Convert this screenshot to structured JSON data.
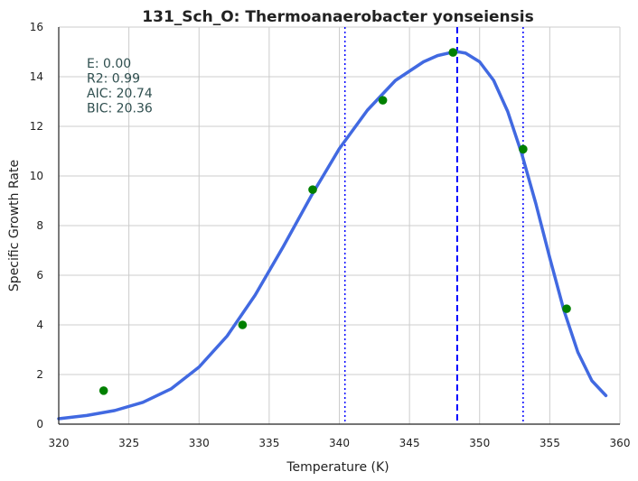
{
  "chart_data": {
    "type": "line",
    "title": "131_Sch_O: Thermoanaerobacter yonseiensis",
    "xlabel": "Temperature (K)",
    "ylabel": "Specific Growth Rate",
    "xlim": [
      320,
      360
    ],
    "ylim": [
      0,
      16
    ],
    "x_ticks": [
      320,
      325,
      330,
      335,
      340,
      345,
      350,
      355,
      360
    ],
    "y_ticks": [
      0,
      2,
      4,
      6,
      8,
      10,
      12,
      14,
      16
    ],
    "grid": true,
    "stats": [
      "E:  0.00",
      "R2:  0.99",
      "AIC: 20.74",
      "BIC: 20.36"
    ],
    "points": {
      "color": "#008000",
      "x": [
        323.2,
        333.1,
        338.1,
        343.1,
        348.1,
        353.1,
        356.2
      ],
      "y": [
        1.35,
        4.0,
        9.45,
        13.05,
        14.98,
        11.08,
        4.65
      ]
    },
    "fit_curve": {
      "color": "#4169e1",
      "x": [
        320,
        322,
        324,
        326,
        328,
        330,
        332,
        334,
        336,
        338,
        340,
        342,
        344,
        346,
        347,
        348,
        348.5,
        349,
        350,
        351,
        352,
        353,
        354,
        355,
        356,
        357,
        358,
        359
      ],
      "y": [
        0.22,
        0.35,
        0.55,
        0.88,
        1.42,
        2.3,
        3.55,
        5.2,
        7.15,
        9.2,
        11.1,
        12.65,
        13.85,
        14.6,
        14.85,
        14.98,
        15.0,
        14.95,
        14.6,
        13.85,
        12.6,
        10.9,
        8.9,
        6.7,
        4.6,
        2.9,
        1.75,
        1.15
      ]
    },
    "vlines": [
      {
        "x": 348.4,
        "style": "dashed",
        "color": "#0000ff"
      },
      {
        "x": 340.4,
        "style": "dotted",
        "color": "#0000ff"
      },
      {
        "x": 353.1,
        "style": "dotted",
        "color": "#0000ff"
      }
    ]
  }
}
